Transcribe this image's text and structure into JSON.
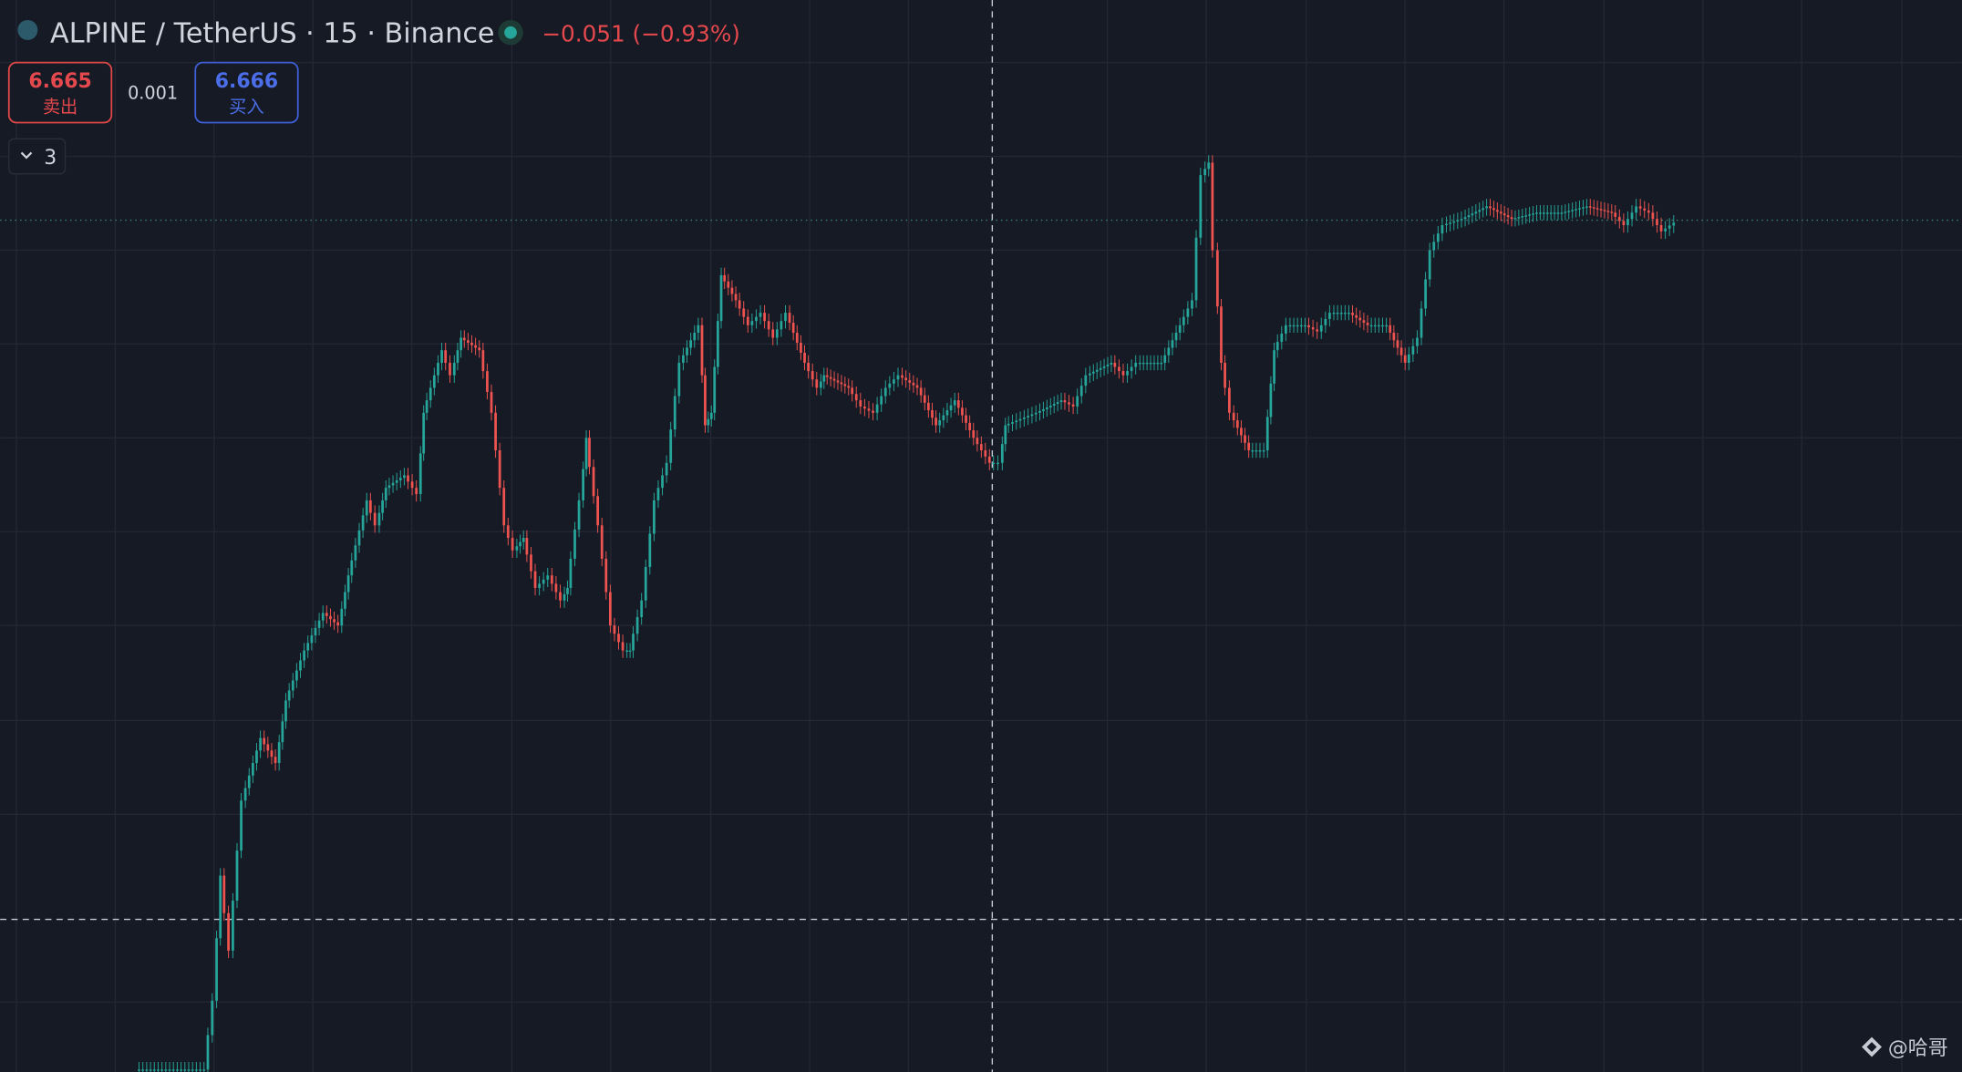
{
  "header": {
    "symbol": "ALPINE / TetherUS · 15 · Binance",
    "change": "−0.051 (−0.93%)"
  },
  "trade": {
    "sell_price": "6.665",
    "sell_label": "卖出",
    "spread": "0.001",
    "buy_price": "6.666",
    "buy_label": "买入"
  },
  "indicators": {
    "count": "3"
  },
  "watermark": "@哈哥"
}
